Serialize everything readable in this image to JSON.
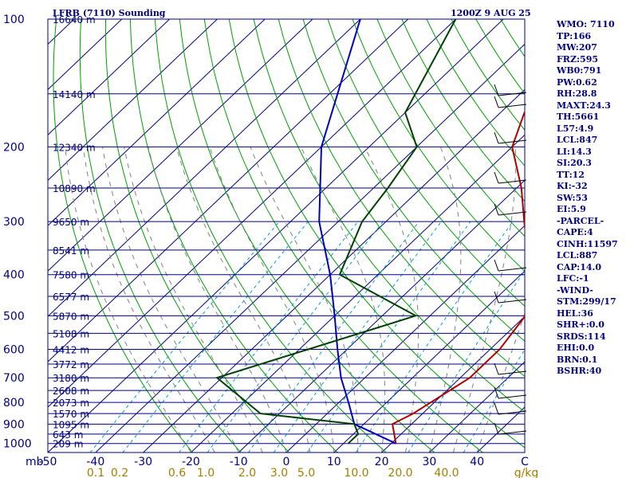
{
  "header": {
    "station": "LFRB (7110) Sounding",
    "time": "1200Z  9 AUG 25"
  },
  "pressure_labels": [
    "100",
    "200",
    "300",
    "400",
    "500",
    "600",
    "700",
    "800",
    "900",
    "1000"
  ],
  "height_labels": [
    "16640 m",
    "14140 m",
    "12340 m",
    "10890 m",
    "9650 m",
    "8541 m",
    "7580 m",
    "6577 m",
    "5870 m",
    "5108 m",
    "4412 m",
    "3772 m",
    "3180 m",
    "2608 m",
    "2073 m",
    "1570 m",
    "1095 m",
    "643 m",
    "209 m"
  ],
  "temp_axis": {
    "unit": "mb",
    "labels": [
      "-50",
      "-40",
      "-30",
      "-20",
      "-10",
      "0",
      "10",
      "20",
      "30",
      "40",
      "C"
    ]
  },
  "mixing_ratio_axis": {
    "labels": [
      "0.1",
      "0.2",
      "0.6",
      "1.0",
      "2.0",
      "3.0",
      "5.0",
      "10.0",
      "20.0",
      "40.0",
      "g/kg"
    ]
  },
  "indices": [
    "WMO: 7110",
    "TP:166",
    "MW:207",
    "FRZ:595",
    "WB0:791",
    "PW:0.62",
    "RH:28.8",
    "MAXT:24.3",
    "TH:5661",
    "L57:4.9",
    "LCL:847",
    "LI:14.3",
    "SI:20.3",
    "TT:12",
    "KI:-32",
    "SW:53",
    "EI:5.9",
    "-PARCEL-",
    "CAPE:4",
    "CINH:11597",
    "LCL:887",
    "CAP:14.0",
    "LFC:-1",
    "-WIND-",
    "STM:299/17",
    "HEL:36",
    "SHR+:0.0",
    "SRDS:114",
    "EHI:0.0",
    "BRN:0.1",
    "BSHR:40"
  ],
  "colors": {
    "isobar": "#000080",
    "skewed_isotherm": "#000080",
    "dry_adiabat": "#00a000",
    "moist_adiabat": "#808080",
    "mixing_ratio": "#00a0d0",
    "temperature": "#b00000",
    "dewpoint": "#004000",
    "parcel": "#0000c0",
    "text": "#000080",
    "bottom_axis": "#a08000"
  },
  "chart_data": {
    "type": "sounding",
    "temperature_profile_C": [
      {
        "p": 1000,
        "t": 21
      },
      {
        "p": 900,
        "t": 16
      },
      {
        "p": 850,
        "t": 18
      },
      {
        "p": 700,
        "t": 22
      },
      {
        "p": 600,
        "t": 22
      },
      {
        "p": 500,
        "t": 20
      },
      {
        "p": 400,
        "t": 12
      },
      {
        "p": 300,
        "t": -1
      },
      {
        "p": 250,
        "t": -9
      },
      {
        "p": 200,
        "t": -20
      },
      {
        "p": 166,
        "t": -25
      },
      {
        "p": 100,
        "t": 13
      }
    ],
    "dewpoint_profile_C": [
      {
        "p": 1000,
        "t": 11
      },
      {
        "p": 950,
        "t": 11
      },
      {
        "p": 900,
        "t": 8
      },
      {
        "p": 850,
        "t": -14
      },
      {
        "p": 700,
        "t": -31
      },
      {
        "p": 500,
        "t": -3
      },
      {
        "p": 400,
        "t": -28
      },
      {
        "p": 300,
        "t": -35
      },
      {
        "p": 250,
        "t": -37
      },
      {
        "p": 200,
        "t": -40
      },
      {
        "p": 166,
        "t": -50
      },
      {
        "p": 100,
        "t": -60
      }
    ],
    "parcel_profile_C": [
      {
        "p": 1000,
        "t": 21
      },
      {
        "p": 900,
        "t": 8
      },
      {
        "p": 800,
        "t": 2
      },
      {
        "p": 700,
        "t": -5
      },
      {
        "p": 600,
        "t": -12
      },
      {
        "p": 500,
        "t": -20
      },
      {
        "p": 400,
        "t": -30
      },
      {
        "p": 300,
        "t": -44
      },
      {
        "p": 200,
        "t": -60
      },
      {
        "p": 100,
        "t": -80
      }
    ],
    "pressure_range_mb": [
      1050,
      100
    ],
    "temperature_range_C": [
      -50,
      50
    ]
  }
}
